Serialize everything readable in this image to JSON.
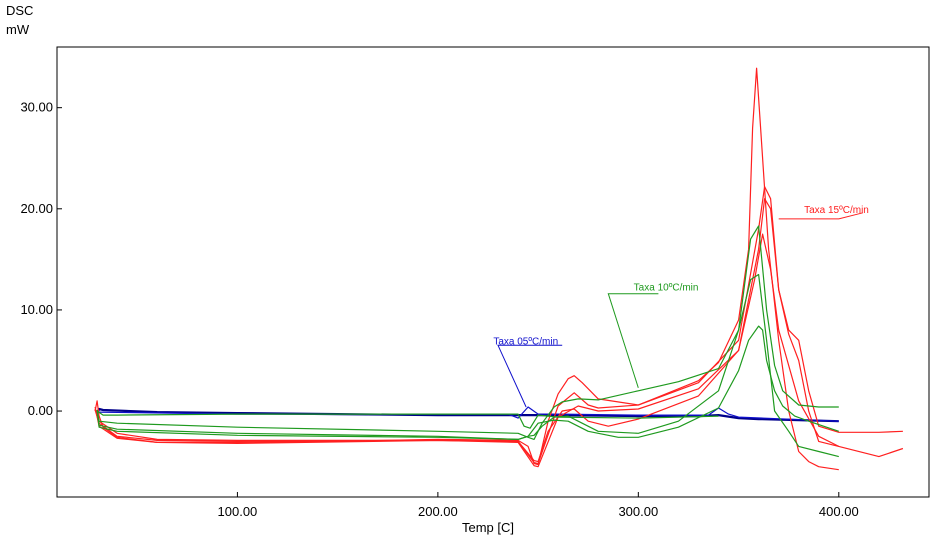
{
  "chart_data": {
    "type": "line",
    "title": "",
    "ylabel_line1": "DSC",
    "ylabel_line2": "mW",
    "xlabel": "Temp [C]",
    "xlim": [
      10,
      445
    ],
    "ylim": [
      -8.5,
      36
    ],
    "x_ticks": [
      100,
      200,
      300,
      400
    ],
    "x_tick_labels": [
      "100.00",
      "200.00",
      "300.00",
      "400.00"
    ],
    "y_ticks": [
      0,
      10,
      20,
      30
    ],
    "y_tick_labels": [
      "0.00",
      "10.00",
      "20.00",
      "30.00"
    ],
    "grid": false,
    "colors": {
      "red": "#ff2020",
      "green": "#1f9a1f",
      "blue": "#1010cc",
      "navy": "#00008b"
    },
    "annotations": [
      {
        "text": "Taxa 15ºC/min",
        "color": "#ff2020",
        "label_at": [
          415,
          19.6
        ],
        "leader": [
          [
            370,
            19
          ],
          [
            400,
            19
          ],
          [
            412,
            19.6
          ]
        ]
      },
      {
        "text": "Taxa 10ºC/min",
        "color": "#1f9a1f",
        "label_at": [
          330,
          11.9
        ],
        "leader": [
          [
            300,
            2.3
          ],
          [
            285,
            11.6
          ],
          [
            310,
            11.6
          ]
        ]
      },
      {
        "text": "Taxa 05ºC/min",
        "color": "#1010cc",
        "label_at": [
          260,
          6.6
        ],
        "leader": [
          [
            244,
            0.4
          ],
          [
            230,
            6.5
          ],
          [
            262,
            6.5
          ]
        ]
      }
    ],
    "series": [
      {
        "color": "#00008b",
        "width": 2.2,
        "x": [
          30,
          31,
          33,
          60,
          100,
          150,
          200,
          240,
          260,
          300,
          330,
          340,
          350,
          360,
          380,
          400
        ],
        "y": [
          -0.2,
          0.2,
          0.1,
          -0.1,
          -0.2,
          -0.3,
          -0.4,
          -0.4,
          -0.4,
          -0.5,
          -0.5,
          -0.4,
          -0.7,
          -0.8,
          -0.9,
          -1.0
        ]
      },
      {
        "color": "#1010cc",
        "width": 1.2,
        "x": [
          30,
          100,
          200,
          235,
          240,
          245,
          250,
          260,
          300,
          335,
          340,
          345,
          350,
          400
        ],
        "y": [
          -0.1,
          -0.3,
          -0.3,
          -0.3,
          -0.7,
          0.4,
          -0.3,
          -0.3,
          -0.4,
          -0.4,
          0.3,
          -0.3,
          -0.6,
          -1.0
        ]
      },
      {
        "color": "#ff2020",
        "width": 1.2,
        "x": [
          29,
          30,
          31,
          33,
          40,
          60,
          100,
          150,
          200,
          240,
          245,
          248,
          250,
          255,
          260,
          265,
          268,
          272,
          280,
          300,
          330,
          340,
          350,
          355,
          357,
          359,
          361,
          365,
          370,
          375,
          380,
          385,
          390,
          400
        ],
        "y": [
          0,
          1.0,
          -0.5,
          -1.6,
          -2.6,
          -3.1,
          -3.1,
          -3.0,
          -2.8,
          -2.9,
          -3.5,
          -5.2,
          -5.3,
          -1.0,
          1.7,
          3.2,
          3.5,
          2.8,
          1.2,
          0.6,
          3.0,
          4.8,
          9.0,
          16.0,
          28.0,
          33.9,
          28.0,
          16.0,
          7.0,
          0.0,
          -4.0,
          -5.0,
          -5.5,
          -5.8
        ]
      },
      {
        "color": "#ff2020",
        "width": 1.2,
        "x": [
          29,
          31,
          40,
          60,
          100,
          200,
          240,
          248,
          250,
          260,
          268,
          275,
          280,
          300,
          330,
          350,
          360,
          363,
          366,
          370,
          375,
          380,
          385,
          390,
          400,
          420,
          432
        ],
        "y": [
          0.2,
          -1.0,
          -2.2,
          -2.8,
          -2.9,
          -2.9,
          -3.0,
          -5.1,
          -5.2,
          0.5,
          1.8,
          0.6,
          0.3,
          0.6,
          2.8,
          7.0,
          18.0,
          22.2,
          21.0,
          12.0,
          8.0,
          7.0,
          2.0,
          -1.5,
          -2.1,
          -2.1,
          -2.0
        ]
      },
      {
        "color": "#ff2020",
        "width": 1.2,
        "x": [
          29,
          31,
          40,
          60,
          100,
          200,
          240,
          248,
          250,
          260,
          270,
          280,
          300,
          330,
          350,
          360,
          363,
          366,
          370,
          375,
          380,
          385,
          390,
          400,
          420,
          432
        ],
        "y": [
          0.1,
          -1.2,
          -2.5,
          -2.9,
          -3.0,
          -2.9,
          -3.1,
          -5.4,
          -5.5,
          -0.6,
          0.5,
          0.0,
          0.2,
          2.2,
          6.0,
          16.0,
          21.0,
          20.0,
          12.0,
          7.6,
          5.0,
          0.0,
          -3.0,
          -3.5,
          -4.5,
          -3.7
        ]
      },
      {
        "color": "#ff2020",
        "width": 1.2,
        "x": [
          29,
          31,
          40,
          60,
          100,
          200,
          240,
          248,
          250,
          255,
          262,
          268,
          275,
          285,
          300,
          330,
          350,
          358,
          362,
          366,
          370,
          380,
          390,
          400
        ],
        "y": [
          0.4,
          -1.5,
          -2.7,
          -3.1,
          -3.2,
          -2.9,
          -3.0,
          -4.9,
          -5.0,
          -2.0,
          0.0,
          0.2,
          -1.0,
          -1.5,
          -0.8,
          1.5,
          6.0,
          13.0,
          17.5,
          14.0,
          8.0,
          1.0,
          -2.5,
          -3.5
        ]
      },
      {
        "color": "#1f9a1f",
        "width": 1.2,
        "x": [
          30,
          31,
          40,
          100,
          200,
          240,
          245,
          248,
          252,
          258,
          262,
          270,
          280,
          300,
          320,
          340,
          350,
          356,
          360,
          364,
          368,
          372,
          380,
          390,
          400
        ],
        "y": [
          0.1,
          -1.0,
          -1.2,
          -1.6,
          -2.0,
          -2.2,
          -2.6,
          -2.8,
          -1.2,
          0.4,
          0.9,
          1.2,
          1.1,
          2.0,
          2.9,
          4.2,
          8.0,
          17.0,
          18.3,
          10.0,
          4.5,
          2.0,
          0.6,
          0.4,
          0.4
        ]
      },
      {
        "color": "#1f9a1f",
        "width": 1.2,
        "x": [
          30,
          31,
          40,
          100,
          200,
          240,
          245,
          248,
          252,
          258,
          265,
          270,
          280,
          300,
          320,
          340,
          350,
          356,
          360,
          364,
          368,
          375,
          380,
          390,
          400
        ],
        "y": [
          0.1,
          -1.4,
          -1.8,
          -2.2,
          -2.5,
          -2.8,
          -2.5,
          -2.4,
          -1.5,
          -0.6,
          -0.5,
          -1.0,
          -2.0,
          -2.2,
          -1.0,
          2.0,
          8.0,
          13.0,
          13.5,
          7.0,
          0.0,
          -2.0,
          -3.5,
          -4.0,
          -4.5
        ]
      },
      {
        "color": "#1f9a1f",
        "width": 1.2,
        "x": [
          30,
          31,
          40,
          100,
          200,
          240,
          245,
          250,
          258,
          265,
          275,
          290,
          300,
          320,
          340,
          350,
          355,
          360,
          362,
          364,
          368,
          372,
          378,
          385,
          400
        ],
        "y": [
          0.1,
          -1.6,
          -2.0,
          -2.4,
          -2.6,
          -2.8,
          -2.5,
          -1.2,
          -0.9,
          -1.0,
          -2.0,
          -2.6,
          -2.6,
          -1.6,
          0.3,
          4.0,
          7.0,
          8.4,
          8.0,
          5.0,
          2.0,
          0.5,
          -0.5,
          -1.0,
          -2.0
        ]
      },
      {
        "color": "#1f9a1f",
        "width": 1.2,
        "x": [
          30,
          33,
          40,
          100,
          200,
          240,
          243,
          246,
          250,
          260,
          300,
          340
        ],
        "y": [
          0.0,
          -0.4,
          -0.4,
          -0.3,
          -0.3,
          -0.3,
          -1.5,
          -1.7,
          -0.4,
          -0.6,
          -0.7,
          -0.5
        ]
      }
    ]
  }
}
